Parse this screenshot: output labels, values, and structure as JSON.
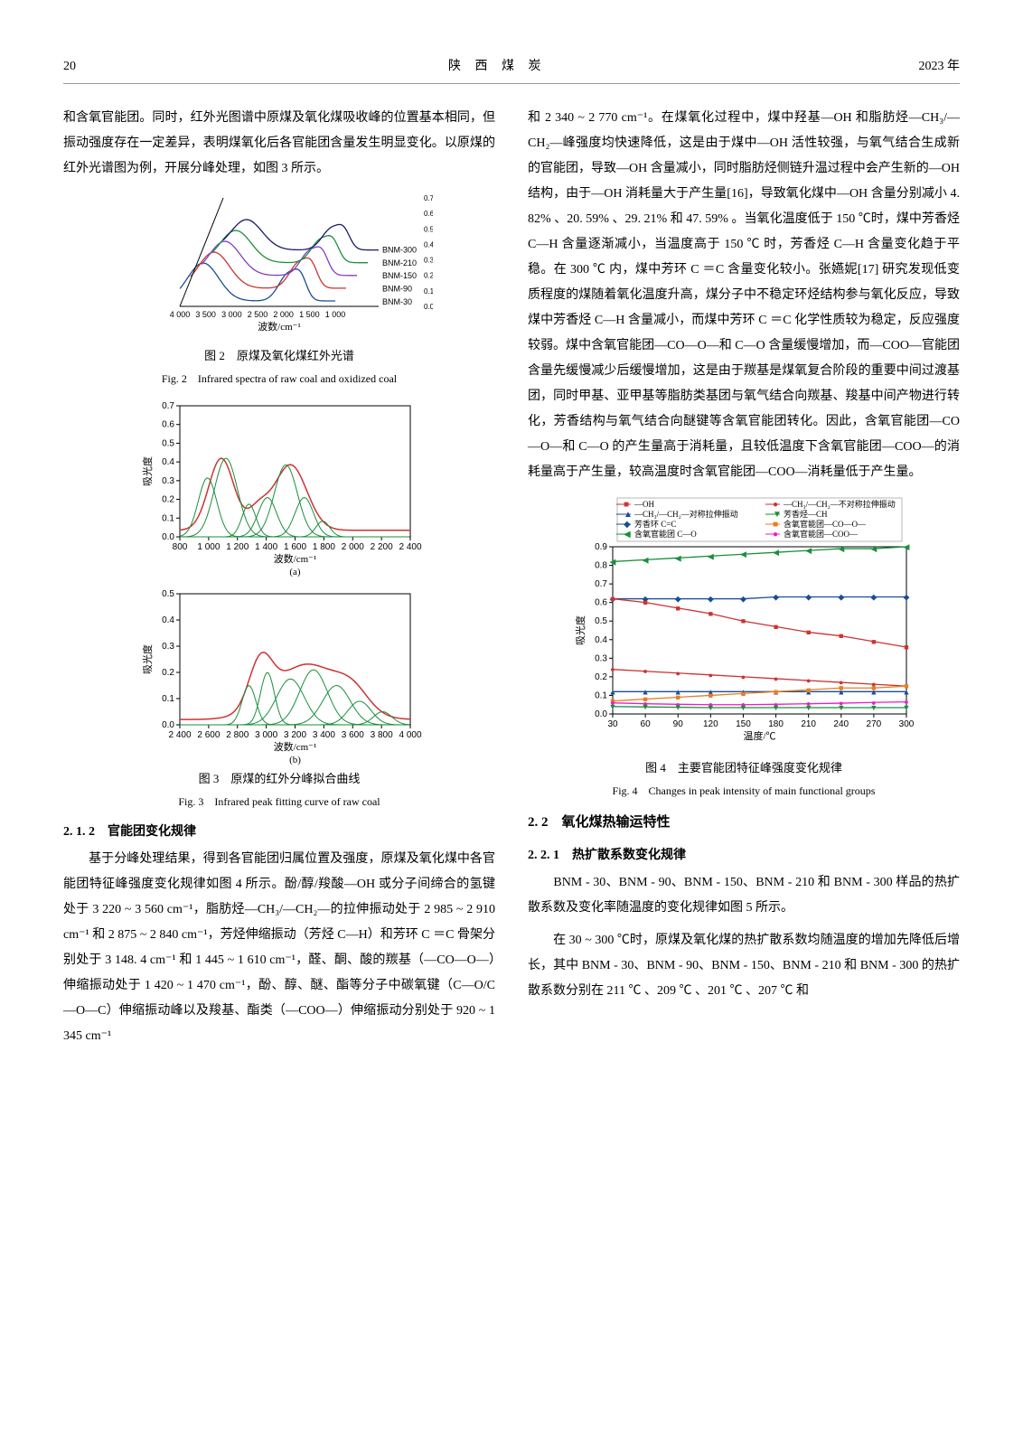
{
  "header": {
    "page_no": "20",
    "journal": "陕 西 煤 炭",
    "year": "2023 年"
  },
  "leftCol": {
    "intro": "和含氧官能团。同时，红外光图谱中原煤及氧化煤吸收峰的位置基本相同，但振动强度存在一定差异，表明煤氧化后各官能团含量发生明显变化。以原煤的红外光谱图为例，开展分峰处理，如图 3 所示。",
    "fig2": {
      "cn": "图 2　原煤及氧化煤红外光谱",
      "en": "Fig. 2　Infrared spectra of raw coal and oxidized coal",
      "xlabel": "波数/cm⁻¹",
      "ylabel": "吸光度",
      "xticks": [
        "4 000",
        "3 500",
        "3 000",
        "2 500",
        "2 000",
        "1 500",
        "1 000"
      ],
      "yticks": [
        "0.0",
        "0.1",
        "0.2",
        "0.3",
        "0.4",
        "0.5",
        "0.6",
        "0.7"
      ],
      "series": [
        "BNM-300",
        "BNM-210",
        "BNM-150",
        "BNM-90",
        "BNM-30"
      ],
      "colors": [
        "#1a4d93",
        "#c33",
        "#7f3fbf",
        "#1a8f3a",
        "#1a1a6a"
      ]
    },
    "fig3": {
      "cn": "图 3　原煤的红外分峰拟合曲线",
      "en": "Fig. 3　Infrared peak fitting curve of raw coal",
      "xlabel": "波数/cm⁻¹",
      "ylabel": "吸光度",
      "a": {
        "xticks": [
          "800",
          "1 000",
          "1 200",
          "1 400",
          "1 600",
          "1 800",
          "2 000",
          "2 200",
          "2 400"
        ],
        "yticks": [
          "0.0",
          "0.1",
          "0.2",
          "0.3",
          "0.4",
          "0.5",
          "0.6",
          "0.7"
        ],
        "lbl": "(a)"
      },
      "b": {
        "xticks": [
          "2 400",
          "2 600",
          "2 800",
          "3 000",
          "3 200",
          "3 400",
          "3 600",
          "3 800",
          "4 000"
        ],
        "yticks": [
          "0.0",
          "0.1",
          "0.2",
          "0.3",
          "0.4",
          "0.5"
        ],
        "lbl": "(b)"
      },
      "fit_color": "#1a8f3a",
      "raw_color": "#c33",
      "sum_color": "#000"
    },
    "sec212_head": "2. 1. 2　官能团变化规律",
    "body212": "　　基于分峰处理结果，得到各官能团归属位置及强度，原煤及氧化煤中各官能团特征峰强度变化规律如图 4 所示。酚/醇/羧酸—OH 或分子间缔合的氢键处于 3 220 ~ 3 560 cm⁻¹，脂肪烃—CH₃/—CH₂—的拉伸振动处于 2 985 ~ 2 910 cm⁻¹ 和 2 875 ~ 2 840 cm⁻¹，芳烃伸缩振动（芳烃 C—H）和芳环 C ＝C 骨架分别处于 3 148. 4 cm⁻¹ 和 1 445 ~ 1 610 cm⁻¹，醛、酮、酸的羰基（—CO—O—）伸缩振动处于 1 420 ~ 1 470 cm⁻¹，酚、醇、醚、酯等分子中碳氧键（C—O/C—O—C）伸缩振动峰以及羧基、酯类（—COO—）伸缩振动分别处于 920 ~ 1 345 cm⁻¹"
  },
  "rightCol": {
    "body_top": "和 2 340 ~ 2 770 cm⁻¹。在煤氧化过程中，煤中羟基—OH 和脂肪烃—CH₃/—CH₂—峰强度均快速降低，这是由于煤中—OH 活性较强，与氧气结合生成新的官能团，导致—OH 含量减小，同时脂肪烃侧链升温过程中会产生新的—OH 结构，由于—OH 消耗量大于产生量[16]，导致氧化煤中—OH 含量分别减小 4. 82% 、20. 59% 、29. 21% 和 47. 59% 。当氧化温度低于 150 ℃时，煤中芳香烃 C—H 含量逐渐减小，当温度高于 150 ℃ 时，芳香烃 C—H 含量变化趋于平稳。在 300 ℃ 内，煤中芳环 C ＝C 含量变化较小。张嬿妮[17] 研究发现低变质程度的煤随着氧化温度升高，煤分子中不稳定环烃结构参与氧化反应，导致煤中芳香烃 C—H 含量减小，而煤中芳环 C ＝C 化学性质较为稳定，反应强度较弱。煤中含氧官能团—CO—O—和 C—O 含量缓慢增加，而—COO—官能团含量先缓慢减少后缓慢增加，这是由于羰基是煤氧复合阶段的重要中间过渡基团，同时甲基、亚甲基等脂肪类基团与氧气结合向羰基、羧基中间产物进行转化，芳香结构与氧气结合向醚键等含氧官能团转化。因此，含氧官能团—CO—O—和 C—O 的产生量高于消耗量，且较低温度下含氧官能团—COO—的消耗量高于产生量，较高温度时含氧官能团—COO—消耗量低于产生量。",
    "fig4": {
      "cn": "图 4　主要官能团特征峰强度变化规律",
      "en": "Fig. 4　Changes in peak intensity of main functional groups",
      "xlabel": "温度/℃",
      "ylabel": "吸光度",
      "xticks": [
        "30",
        "60",
        "90",
        "120",
        "150",
        "180",
        "210",
        "240",
        "270",
        "300"
      ],
      "yticks": [
        "0.0",
        "0.1",
        "0.2",
        "0.3",
        "0.4",
        "0.5",
        "0.6",
        "0.7",
        "0.8",
        "0.9"
      ],
      "legend": [
        "—OH",
        "—CH₃/—CH₂—对称拉伸振动",
        "芳香环 C=C",
        "含氧官能团 C—O",
        "—CH₃/—CH₂—不对称拉伸振动",
        "芳香烃—CH",
        "含氧官能团—CO—O—",
        "含氧官能团—COO—"
      ],
      "colors": [
        "#c33",
        "#1a4d93",
        "#1a4d93",
        "#1a8f3a",
        "#c33",
        "#1a8f3a",
        "#e67e22",
        "#e81ec7"
      ],
      "series_data": {
        "OH": [
          0.62,
          0.6,
          0.57,
          0.54,
          0.5,
          0.47,
          0.44,
          0.42,
          0.39,
          0.36
        ],
        "CH_sym": [
          0.12,
          0.12,
          0.12,
          0.12,
          0.12,
          0.12,
          0.12,
          0.12,
          0.12,
          0.12
        ],
        "ArCC": [
          0.62,
          0.62,
          0.62,
          0.62,
          0.62,
          0.63,
          0.63,
          0.63,
          0.63,
          0.63
        ],
        "CO": [
          0.82,
          0.83,
          0.84,
          0.85,
          0.86,
          0.87,
          0.88,
          0.89,
          0.89,
          0.9
        ],
        "CH_asym": [
          0.24,
          0.23,
          0.22,
          0.21,
          0.2,
          0.19,
          0.18,
          0.17,
          0.16,
          0.15
        ],
        "ArCH": [
          0.04,
          0.038,
          0.036,
          0.034,
          0.034,
          0.034,
          0.034,
          0.034,
          0.034,
          0.034
        ],
        "COO_O": [
          0.07,
          0.08,
          0.09,
          0.1,
          0.11,
          0.12,
          0.13,
          0.14,
          0.14,
          0.15
        ],
        "COO": [
          0.06,
          0.055,
          0.052,
          0.05,
          0.05,
          0.052,
          0.055,
          0.058,
          0.062,
          0.065
        ]
      }
    },
    "sec22_head": "2. 2　氧化煤热输运特性",
    "sec221_head": "2. 2. 1　热扩散系数变化规律",
    "body221a": "　　BNM - 30、BNM - 90、BNM - 150、BNM - 210 和 BNM - 300 样品的热扩散系数及变化率随温度的变化规律如图 5 所示。",
    "body221b": "　　在 30 ~ 300 ℃时，原煤及氧化煤的热扩散系数均随温度的增加先降低后增长，其中 BNM - 30、BNM - 90、BNM - 150、BNM - 210 和 BNM - 300 的热扩散系数分别在 211 ℃ 、209 ℃ 、201 ℃ 、207 ℃ 和"
  }
}
